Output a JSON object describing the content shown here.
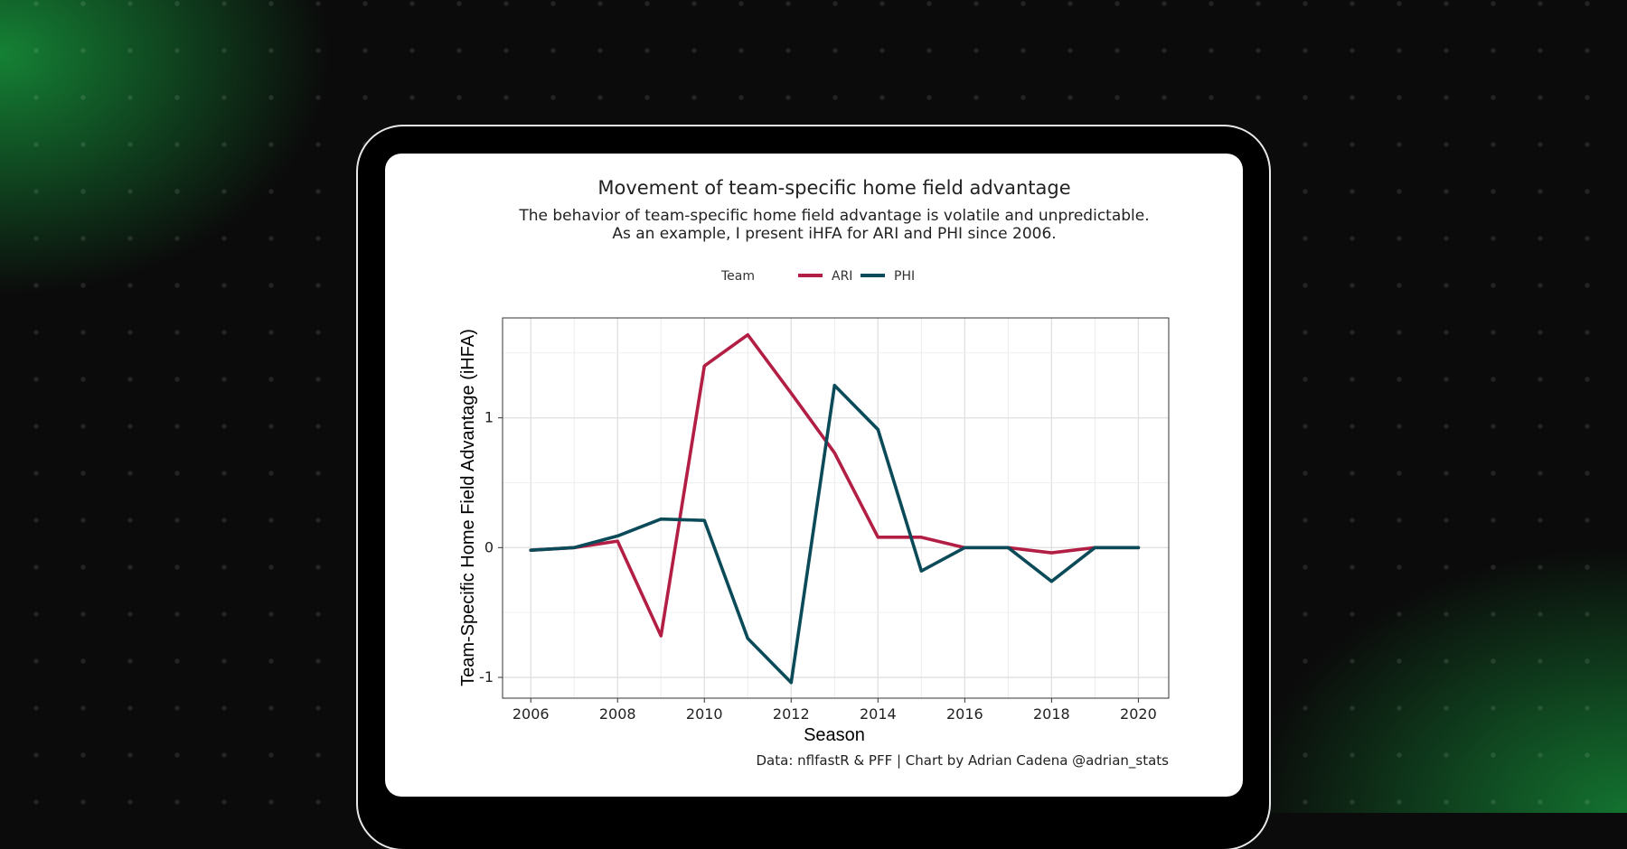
{
  "chart_data": {
    "type": "line",
    "title": "Movement of team-specific home field advantage",
    "subtitle_lines": [
      "The behavior of team-specific home field advantage is volatile and unpredictable.",
      "As an example, I present iHFA for ARI and PHI since 2006."
    ],
    "legend_title": "Team",
    "legend_position": "top",
    "xlabel": "Season",
    "ylabel": "Team-Specific Home Field Advantage (iHFA)",
    "caption": "Data: nflfastR & PFF | Chart by Adrian Cadena @adrian_stats",
    "x": [
      2006,
      2007,
      2008,
      2009,
      2010,
      2011,
      2012,
      2013,
      2014,
      2015,
      2016,
      2017,
      2018,
      2019,
      2020
    ],
    "xlim": [
      2005.35,
      2020.7
    ],
    "ylim": [
      -1.16,
      1.77
    ],
    "x_ticks": [
      2006,
      2008,
      2010,
      2012,
      2014,
      2016,
      2018,
      2020
    ],
    "y_ticks": [
      -1,
      0,
      1
    ],
    "x_tick_labels": [
      "2006",
      "2008",
      "2010",
      "2012",
      "2014",
      "2016",
      "2018",
      "2020"
    ],
    "y_tick_labels": [
      "-1",
      "0",
      "1"
    ],
    "grid": true,
    "series": [
      {
        "name": "ARI",
        "color": "#b31e45",
        "values": [
          -0.02,
          0.0,
          0.05,
          -0.68,
          1.4,
          1.64,
          1.19,
          0.73,
          0.08,
          0.08,
          0.0,
          0.0,
          -0.04,
          0.0,
          0.0
        ]
      },
      {
        "name": "PHI",
        "color": "#0b4a58",
        "values": [
          -0.02,
          0.0,
          0.09,
          0.22,
          0.21,
          -0.7,
          -1.04,
          1.25,
          0.91,
          -0.18,
          0.0,
          0.0,
          -0.26,
          0.0,
          0.0
        ]
      }
    ]
  }
}
